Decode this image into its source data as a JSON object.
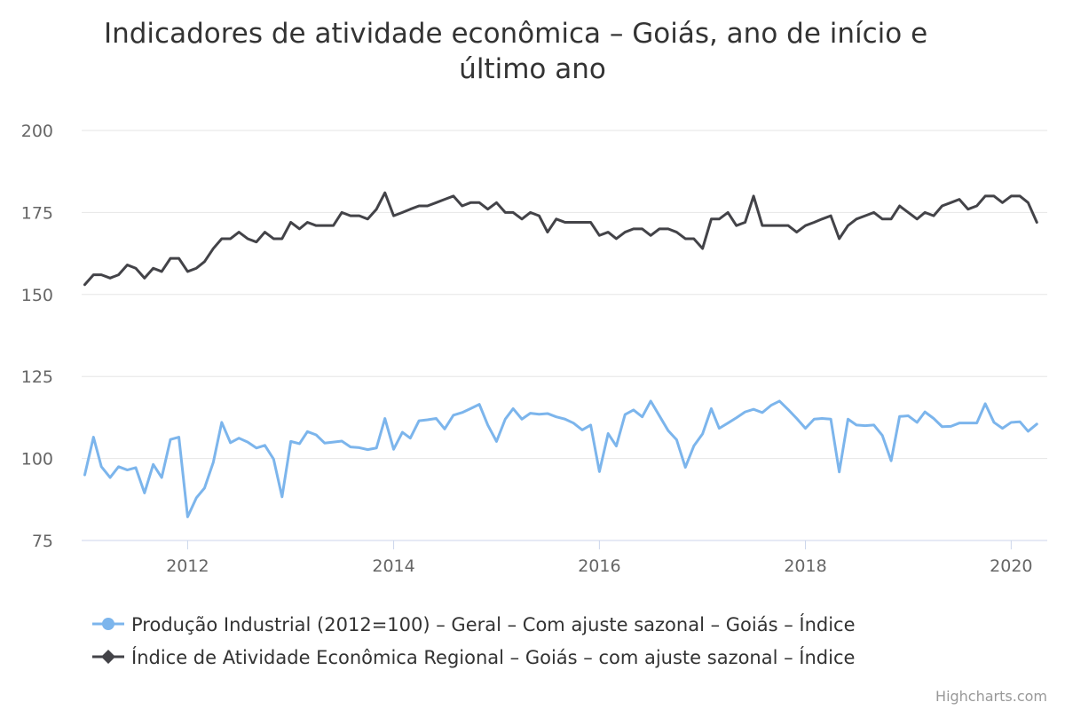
{
  "chart_data": {
    "type": "line",
    "title": "Indicadores de atividade econômica - Goiás, ano de início e último ano",
    "title_lines": [
      "Indicadores de atividade econômica – Goiás, ano de início e",
      "último ano"
    ],
    "xlabel": "",
    "ylabel": "",
    "x_start": "2011-01",
    "x_end": "2020-04",
    "xlim": [
      "2010-12-21",
      "2020-05-08"
    ],
    "ylim": [
      75,
      200
    ],
    "yticks": [
      "75",
      "100",
      "125",
      "150",
      "175",
      "200"
    ],
    "xticks": [
      "2012",
      "2014",
      "2016",
      "2018",
      "2020"
    ],
    "grid": true,
    "legend_position": "bottom",
    "series": [
      {
        "name": "Produção Industrial (2012=100) - Geral - Com ajuste sazonal - Goiás - Índice",
        "color": "#7cb5ec",
        "marker": "circle",
        "values": [
          95,
          106.5,
          97.5,
          94.2,
          97.5,
          96.5,
          97.2,
          89.5,
          98.2,
          94.2,
          105.8,
          106.5,
          82.2,
          88,
          91,
          98.8,
          111,
          104.8,
          106.2,
          105,
          103.2,
          104,
          99.8,
          88.3,
          105.2,
          104.5,
          108.2,
          107.2,
          104.7,
          105,
          105.3,
          103.5,
          103.3,
          102.7,
          103.2,
          112.2,
          102.8,
          108,
          106.2,
          111.5,
          111.8,
          112.2,
          109,
          113.2,
          114,
          115.2,
          116.5,
          110.2,
          105.2,
          112,
          115.2,
          112,
          113.8,
          113.5,
          113.7,
          112.7,
          112,
          110.8,
          108.7,
          110.2,
          96,
          107.6,
          103.8,
          113.4,
          114.8,
          112.7,
          117.5,
          113,
          108.5,
          105.7,
          97.3,
          103.8,
          107.5,
          115.2,
          109.2,
          110.8,
          112.4,
          114.2,
          115,
          114,
          116.2,
          117.5,
          114.9,
          112.2,
          109.2,
          112,
          112.2,
          112,
          95.9,
          112,
          110.2,
          110,
          110.2,
          107,
          99.3,
          112.8,
          113,
          111,
          114.2,
          112.2,
          109.7,
          109.8,
          110.8,
          110.8,
          110.8,
          116.7,
          111,
          109.2,
          111,
          111.2,
          108.3,
          110.5
        ]
      },
      {
        "name": "Índice de Atividade Econômica Regional - Goiás - com ajuste sazonal - Índice",
        "color": "#434348",
        "marker": "diamond",
        "values": [
          153,
          156,
          156,
          155,
          156,
          159,
          158,
          155,
          158,
          157,
          161,
          161,
          157,
          158,
          160,
          164,
          167,
          167,
          169,
          167,
          166,
          169,
          167,
          167,
          172,
          170,
          172,
          171,
          171,
          171,
          175,
          174,
          174,
          173,
          176,
          181,
          174,
          175,
          176,
          177,
          177,
          178,
          179,
          180,
          177,
          178,
          178,
          176,
          178,
          175,
          175,
          173,
          175,
          174,
          169,
          173,
          172,
          172,
          172,
          172,
          168,
          169,
          167,
          169,
          170,
          170,
          168,
          170,
          170,
          169,
          167,
          167,
          164,
          173,
          173,
          175,
          171,
          172,
          180,
          171,
          171,
          171,
          171,
          169,
          171,
          172,
          173,
          174,
          167,
          171,
          173,
          174,
          175,
          173,
          173,
          177,
          175,
          173,
          175,
          174,
          177,
          178,
          179,
          176,
          177,
          180,
          180,
          178,
          180,
          180,
          178,
          172
        ]
      }
    ]
  },
  "legend": {
    "items": [
      "Produção Industrial (2012=100) – Geral – Com ajuste sazonal – Goiás – Índice",
      "Índice de Atividade Econômica Regional – Goiás – com ajuste sazonal – Índice"
    ]
  },
  "credits": "Highcharts.com"
}
